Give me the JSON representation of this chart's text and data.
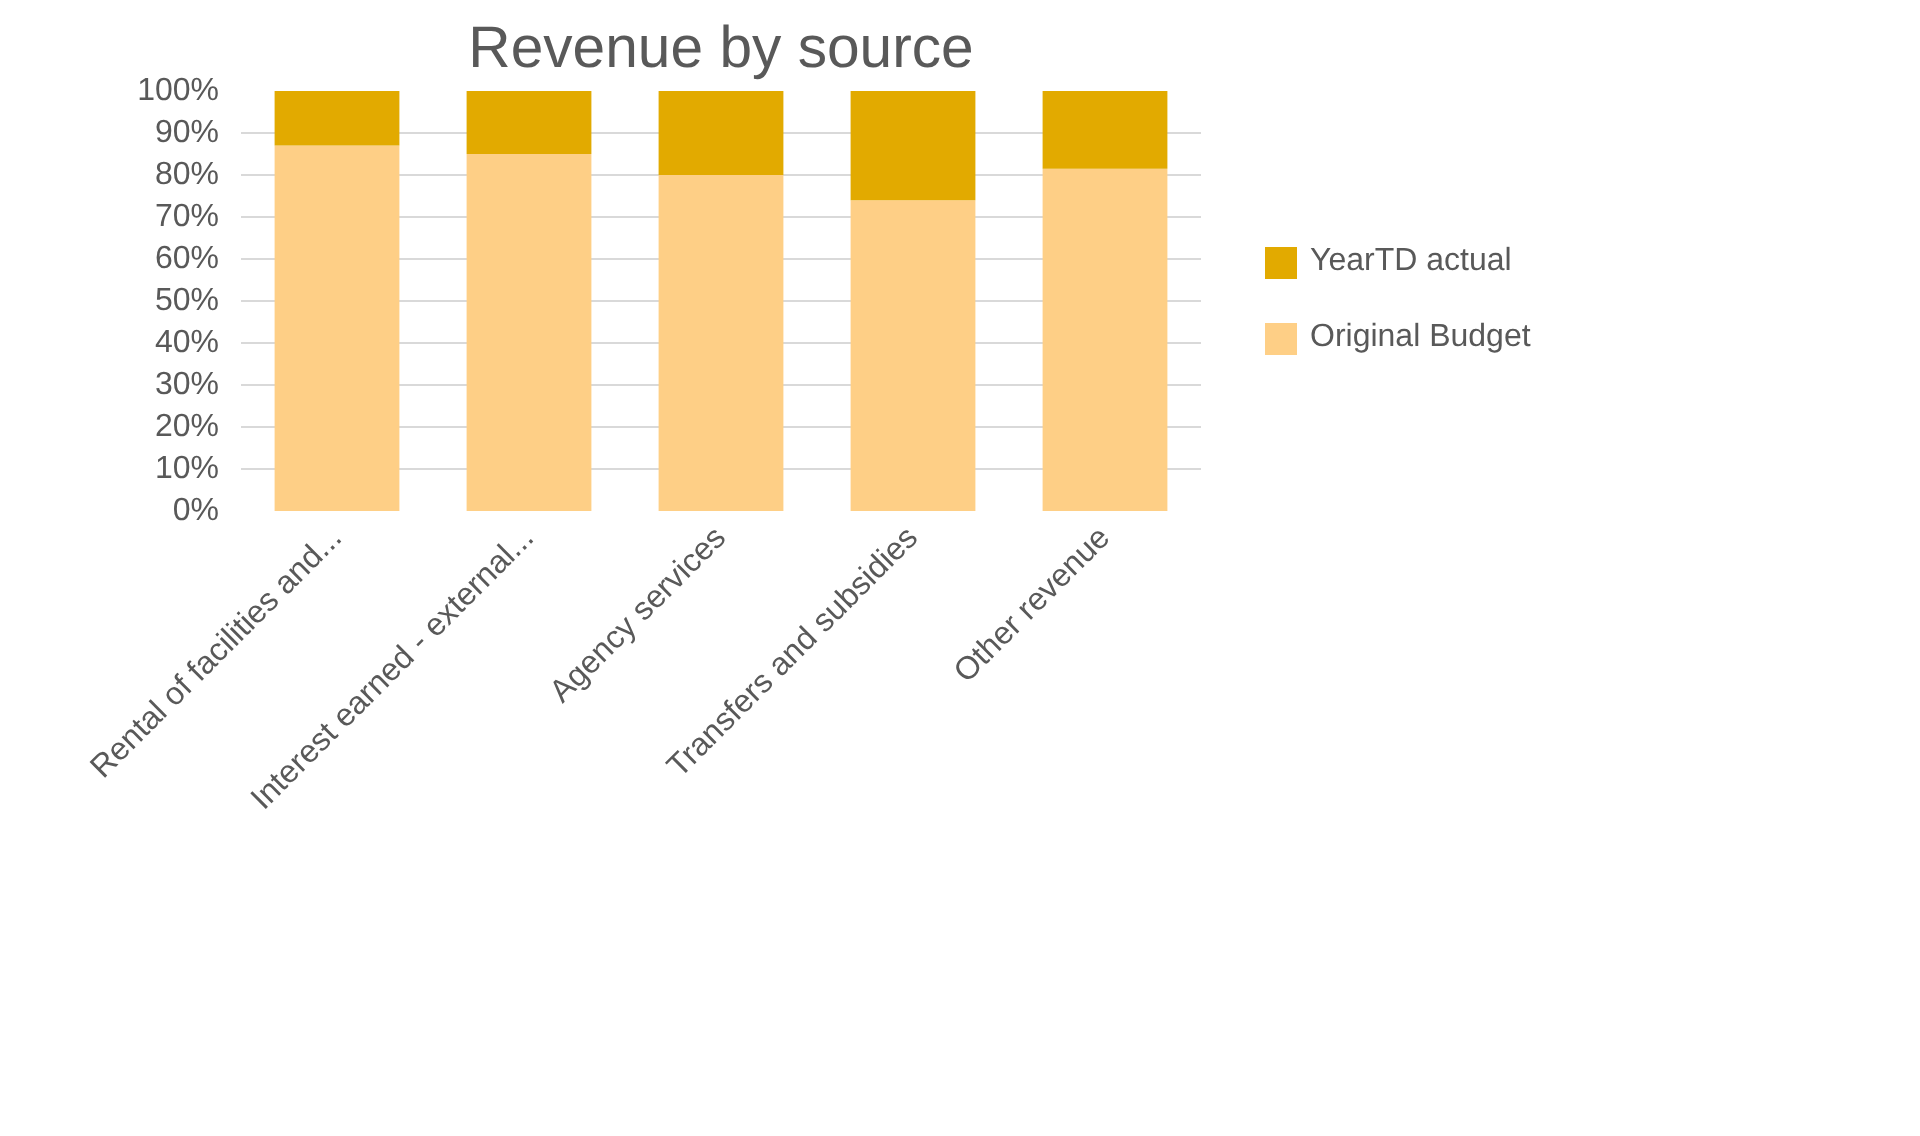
{
  "chart_data": {
    "type": "bar",
    "title": "Revenue by source",
    "stacked": true,
    "categories": [
      "Rental of facilities and...",
      "Interest earned - external...",
      "Agency services",
      "Transfers and subsidies",
      "Other revenue"
    ],
    "series": [
      {
        "name": "Original Budget",
        "color": "#fecf86",
        "values": [
          87,
          85,
          80,
          74,
          81.5
        ]
      },
      {
        "name": "YearTD actual",
        "color": "#e2aa00",
        "values": [
          13,
          15,
          20,
          26,
          18.5
        ]
      }
    ],
    "ylim": [
      0,
      100
    ],
    "yticks": [
      {
        "value": 0,
        "label": "0%"
      },
      {
        "value": 10,
        "label": "10%"
      },
      {
        "value": 20,
        "label": "20%"
      },
      {
        "value": 30,
        "label": "30%"
      },
      {
        "value": 40,
        "label": "40%"
      },
      {
        "value": 50,
        "label": "50%"
      },
      {
        "value": 60,
        "label": "60%"
      },
      {
        "value": 70,
        "label": "70%"
      },
      {
        "value": 80,
        "label": "80%"
      },
      {
        "value": 90,
        "label": "90%"
      },
      {
        "value": 100,
        "label": "100%"
      }
    ],
    "grid": "y",
    "legend": "right"
  }
}
